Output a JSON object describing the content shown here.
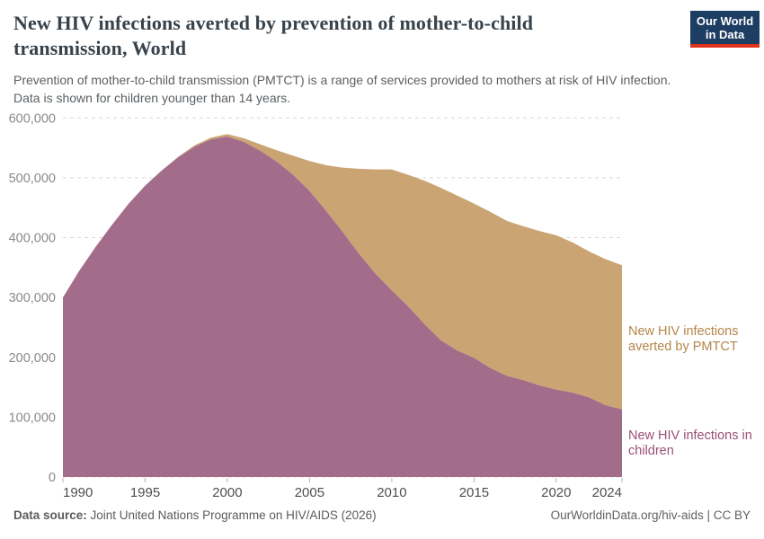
{
  "header": {
    "title": "New HIV infections averted by prevention of mother-to-child transmission, World",
    "subtitle": "Prevention of mother-to-child transmission (PMTCT) is a range of services provided to mothers at risk of HIV infection. Data is shown for children younger than 14 years.",
    "logo": {
      "line1": "Our World",
      "line2": "in Data",
      "bg_color": "#1d3d63",
      "accent_color": "#e0311b"
    }
  },
  "chart_data": {
    "type": "area",
    "stacked": true,
    "title": "New HIV infections averted by prevention of mother-to-child transmission, World",
    "xlabel": "",
    "ylabel": "",
    "ylim": [
      0,
      600000
    ],
    "y_ticks": [
      0,
      100000,
      200000,
      300000,
      400000,
      500000,
      600000
    ],
    "x_ticks": [
      1990,
      1995,
      2000,
      2005,
      2010,
      2015,
      2020,
      2024
    ],
    "grid": "horizontal-dashed",
    "legend_position": "right-edge-labels",
    "x": [
      1990,
      1991,
      1992,
      1993,
      1994,
      1995,
      1996,
      1997,
      1998,
      1999,
      2000,
      2001,
      2002,
      2003,
      2004,
      2005,
      2006,
      2007,
      2008,
      2009,
      2010,
      2011,
      2012,
      2013,
      2014,
      2015,
      2016,
      2017,
      2018,
      2019,
      2020,
      2021,
      2022,
      2023,
      2024
    ],
    "series": [
      {
        "name": "New HIV infections in children",
        "color": "#a36c8b",
        "label_color": "#9a4f76",
        "values": [
          300000,
          345000,
          385000,
          422000,
          457000,
          487000,
          512000,
          534000,
          552000,
          564000,
          569000,
          560000,
          545000,
          527000,
          505000,
          478000,
          445000,
          410000,
          373000,
          340000,
          312000,
          285000,
          255000,
          228000,
          211000,
          199000,
          182000,
          169000,
          162000,
          153000,
          146000,
          141000,
          133000,
          120000,
          113000
        ]
      },
      {
        "name": "New HIV infections averted by PMTCT",
        "color": "#caa472",
        "label_color": "#b5854a",
        "values": [
          0,
          0,
          0,
          0,
          0,
          0,
          0,
          1000,
          2000,
          3000,
          4000,
          6000,
          11000,
          19000,
          32000,
          50000,
          76000,
          107000,
          142000,
          174000,
          202000,
          220000,
          240000,
          255000,
          259000,
          258000,
          261000,
          259000,
          257000,
          258000,
          258000,
          251000,
          244000,
          244000,
          241000
        ]
      }
    ]
  },
  "footer": {
    "source_label": "Data source:",
    "source_text": " Joint United Nations Programme on HIV/AIDS (2026)",
    "credit": "OurWorldinData.org/hiv-aids | CC BY"
  }
}
